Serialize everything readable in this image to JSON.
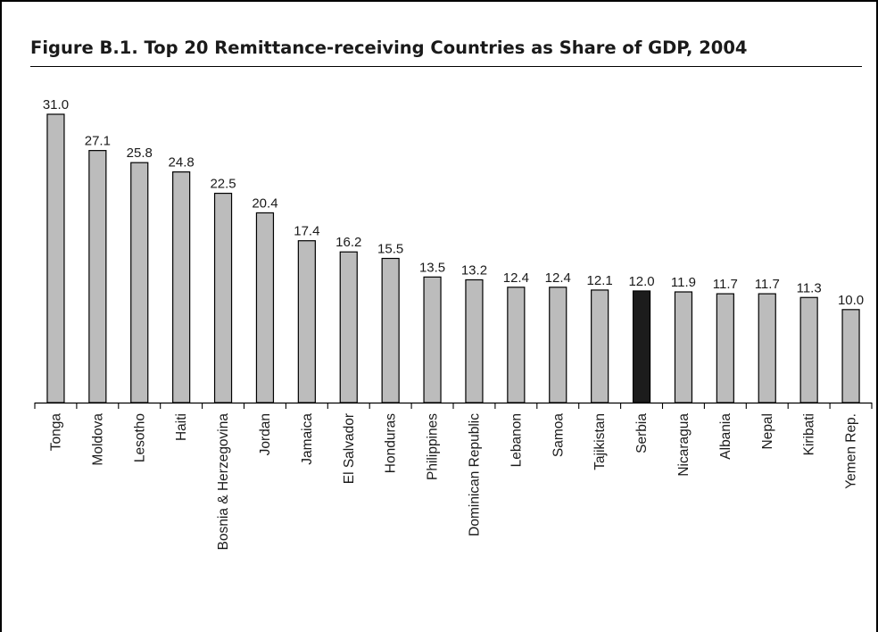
{
  "figure": {
    "title": "Figure B.1.  Top 20 Remittance-receiving Countries as Share of GDP, 2004"
  },
  "colors": {
    "bar_fill": "#bcbcbc",
    "bar_highlight": "#1c1c1c",
    "bar_stroke": "#000000"
  },
  "chart_data": {
    "type": "bar",
    "title": "Figure B.1.  Top 20 Remittance-receiving Countries as Share of GDP, 2004",
    "xlabel": "",
    "ylabel": "",
    "categories": [
      "Tonga",
      "Moldova",
      "Lesotho",
      "Haiti",
      "Bosnia & Herzegovina",
      "Jordan",
      "Jamaica",
      "El Salvador",
      "Honduras",
      "Philippines",
      "Dominican Republic",
      "Lebanon",
      "Samoa",
      "Tajikistan",
      "Serbia",
      "Nicaragua",
      "Albania",
      "Nepal",
      "Kiribati",
      "Yemen Rep."
    ],
    "values": [
      31.0,
      27.1,
      25.8,
      24.8,
      22.5,
      20.4,
      17.4,
      16.2,
      15.5,
      13.5,
      13.2,
      12.4,
      12.4,
      12.1,
      12.0,
      11.9,
      11.7,
      11.7,
      11.3,
      10.0
    ],
    "data_labels": [
      "31.0",
      "27.1",
      "25.8",
      "24.8",
      "22.5",
      "20.4",
      "17.4",
      "16.2",
      "15.5",
      "13.5",
      "13.2",
      "12.4",
      "12.4",
      "12.1",
      "12.0",
      "11.9",
      "11.7",
      "11.7",
      "11.3",
      "10.0"
    ],
    "highlighted_category": "Serbia",
    "ylim": [
      0,
      31.0
    ],
    "grid": false,
    "legend": "none",
    "y_axis_visible": false
  }
}
